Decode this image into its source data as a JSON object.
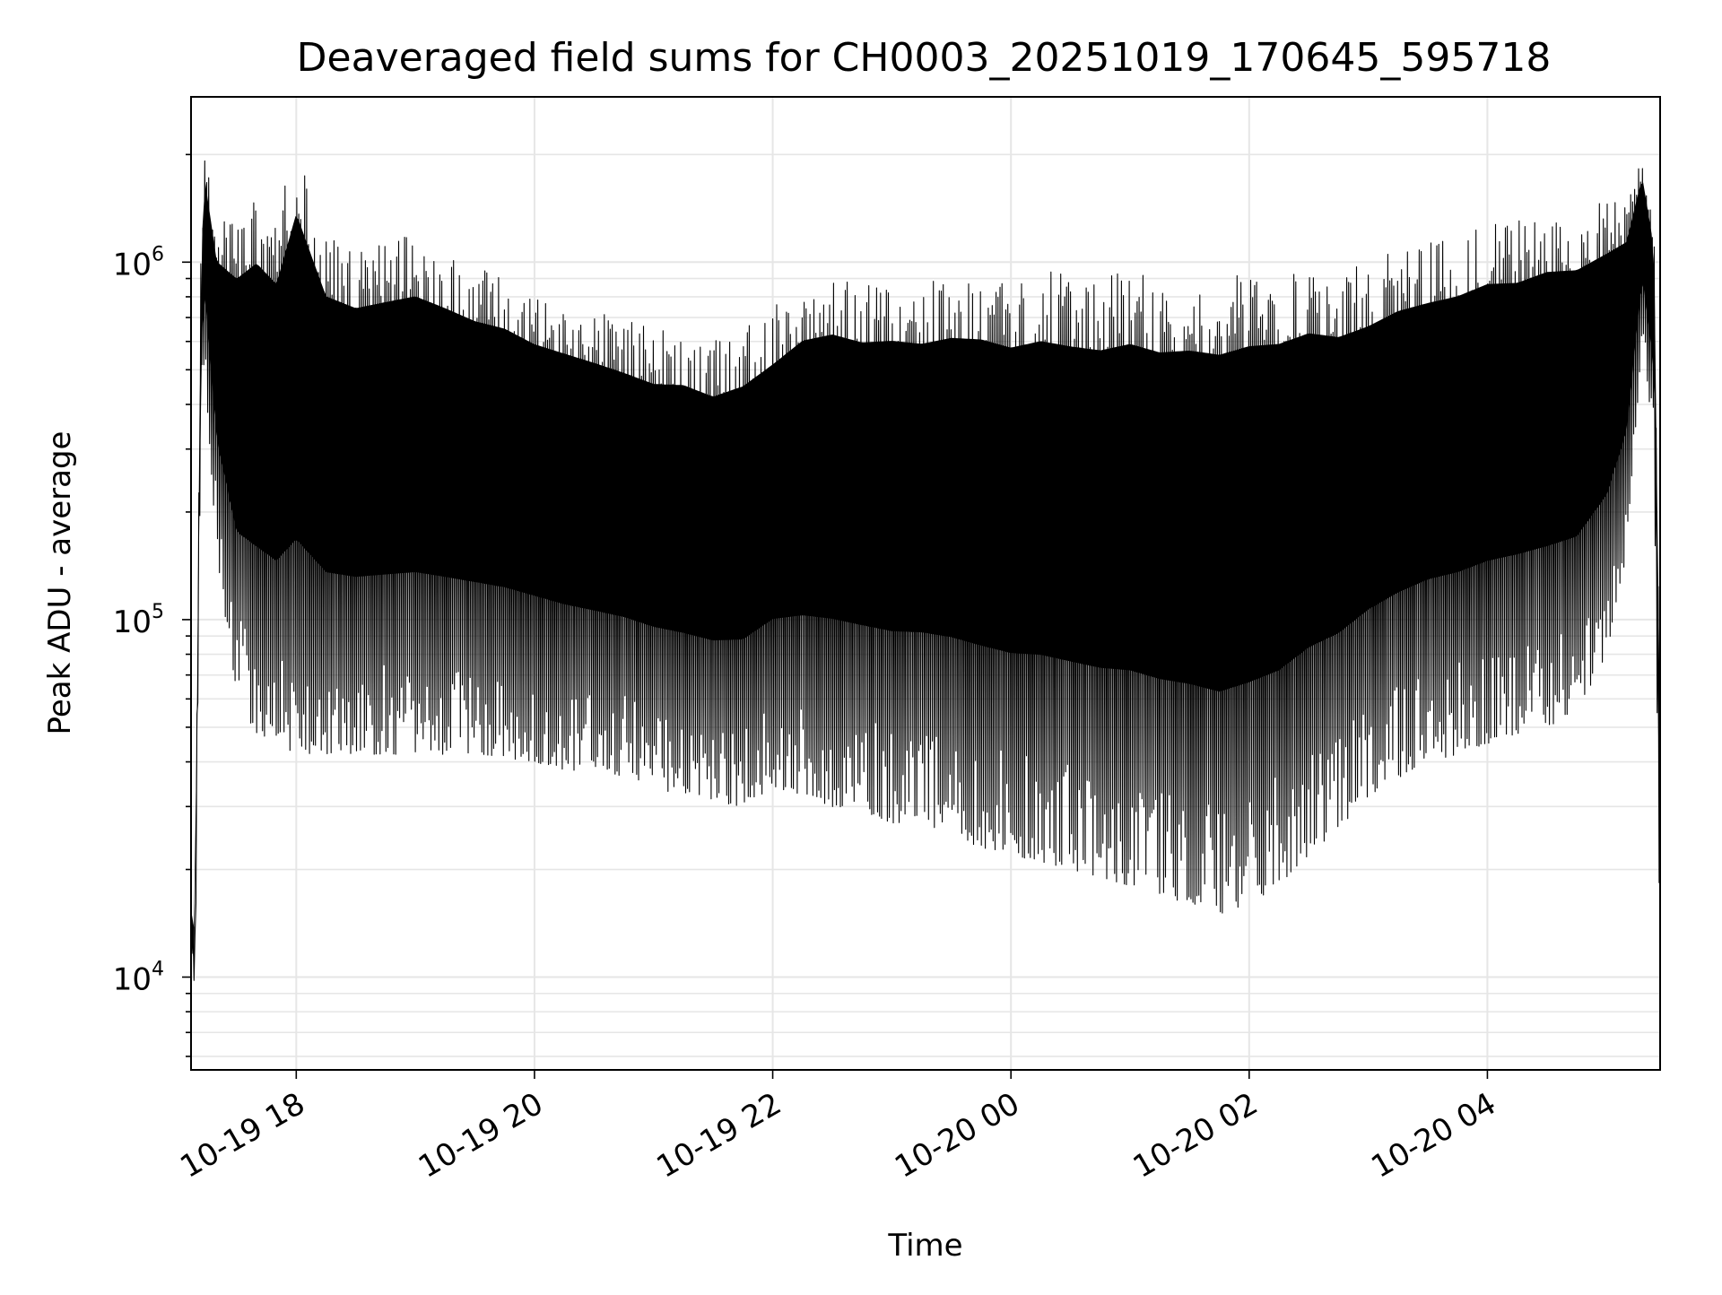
{
  "chart_data": {
    "type": "line",
    "title": "Deaveraged field sums for CH0003_20251019_170645_595718",
    "xlabel": "Time",
    "ylabel": "Peak ADU - average",
    "y_scale": "log",
    "ylim": [
      5500,
      2900000
    ],
    "xlim": [
      "2025-10-19 17:07",
      "2025-10-20 05:27"
    ],
    "grid": true,
    "legend": "none",
    "line_color": "#000000",
    "grid_color": "#e6e6e6",
    "x_ticks": [
      {
        "t": "2025-10-19 18:00",
        "label": "10-19 18"
      },
      {
        "t": "2025-10-19 20:00",
        "label": "10-19 20"
      },
      {
        "t": "2025-10-19 22:00",
        "label": "10-19 22"
      },
      {
        "t": "2025-10-20 00:00",
        "label": "10-20 00"
      },
      {
        "t": "2025-10-20 02:00",
        "label": "10-20 02"
      },
      {
        "t": "2025-10-20 04:00",
        "label": "10-20 04"
      }
    ],
    "y_ticks": [
      {
        "value": 10000,
        "base": "10",
        "exp": "4"
      },
      {
        "value": 100000,
        "base": "10",
        "exp": "5"
      },
      {
        "value": 1000000,
        "base": "10",
        "exp": "6"
      }
    ],
    "series": [
      {
        "x": [
          "2025-10-19 17:07",
          "2025-10-19 17:09",
          "2025-10-19 17:12",
          "2025-10-19 17:14",
          "2025-10-19 17:20",
          "2025-10-19 17:30",
          "2025-10-19 17:40",
          "2025-10-19 17:50",
          "2025-10-19 18:00",
          "2025-10-19 18:15",
          "2025-10-19 18:30",
          "2025-10-19 18:45",
          "2025-10-19 19:00",
          "2025-10-19 19:15",
          "2025-10-19 19:30",
          "2025-10-19 19:45",
          "2025-10-19 20:00",
          "2025-10-19 20:15",
          "2025-10-19 20:30",
          "2025-10-19 20:45",
          "2025-10-19 21:00",
          "2025-10-19 21:15",
          "2025-10-19 21:30",
          "2025-10-19 21:45",
          "2025-10-19 22:00",
          "2025-10-19 22:15",
          "2025-10-19 22:30",
          "2025-10-19 22:45",
          "2025-10-19 23:00",
          "2025-10-19 23:15",
          "2025-10-19 23:30",
          "2025-10-19 23:45",
          "2025-10-20 00:00",
          "2025-10-20 00:15",
          "2025-10-20 00:30",
          "2025-10-20 00:45",
          "2025-10-20 01:00",
          "2025-10-20 01:15",
          "2025-10-20 01:30",
          "2025-10-20 01:45",
          "2025-10-20 02:00",
          "2025-10-20 02:15",
          "2025-10-20 02:30",
          "2025-10-20 02:45",
          "2025-10-20 03:00",
          "2025-10-20 03:15",
          "2025-10-20 03:30",
          "2025-10-20 03:45",
          "2025-10-20 04:00",
          "2025-10-20 04:15",
          "2025-10-20 04:30",
          "2025-10-20 04:45",
          "2025-10-20 05:00",
          "2025-10-20 05:10",
          "2025-10-20 05:18",
          "2025-10-20 05:24",
          "2025-10-20 05:27"
        ],
        "upper": [
          16000,
          14000,
          1200000,
          2000000,
          1300000,
          1300000,
          1500000,
          1300000,
          2200000,
          1200000,
          1100000,
          1150000,
          1200000,
          1100000,
          1000000,
          950000,
          850000,
          800000,
          750000,
          700000,
          650000,
          650000,
          600000,
          650000,
          750000,
          900000,
          950000,
          900000,
          920000,
          900000,
          950000,
          950000,
          900000,
          950000,
          920000,
          900000,
          950000,
          900000,
          920000,
          900000,
          950000,
          950000,
          1000000,
          950000,
          1000000,
          1100000,
          1150000,
          1200000,
          1300000,
          1300000,
          1400000,
          1400000,
          1500000,
          1500000,
          2000000,
          1300000,
          60000
        ],
        "lower": [
          12000,
          8500,
          400000,
          500000,
          150000,
          60000,
          48000,
          45000,
          42000,
          42000,
          42000,
          42000,
          42000,
          42000,
          42000,
          41000,
          40000,
          38000,
          37000,
          36000,
          34000,
          32000,
          31000,
          30000,
          34000,
          32000,
          30000,
          29000,
          27000,
          27000,
          25000,
          23000,
          22000,
          21000,
          20000,
          19000,
          18000,
          17000,
          16000,
          15000,
          16000,
          18000,
          22000,
          26000,
          32000,
          36000,
          40000,
          42000,
          45000,
          48000,
          50000,
          55000,
          80000,
          150000,
          600000,
          300000,
          9000
        ]
      }
    ]
  }
}
